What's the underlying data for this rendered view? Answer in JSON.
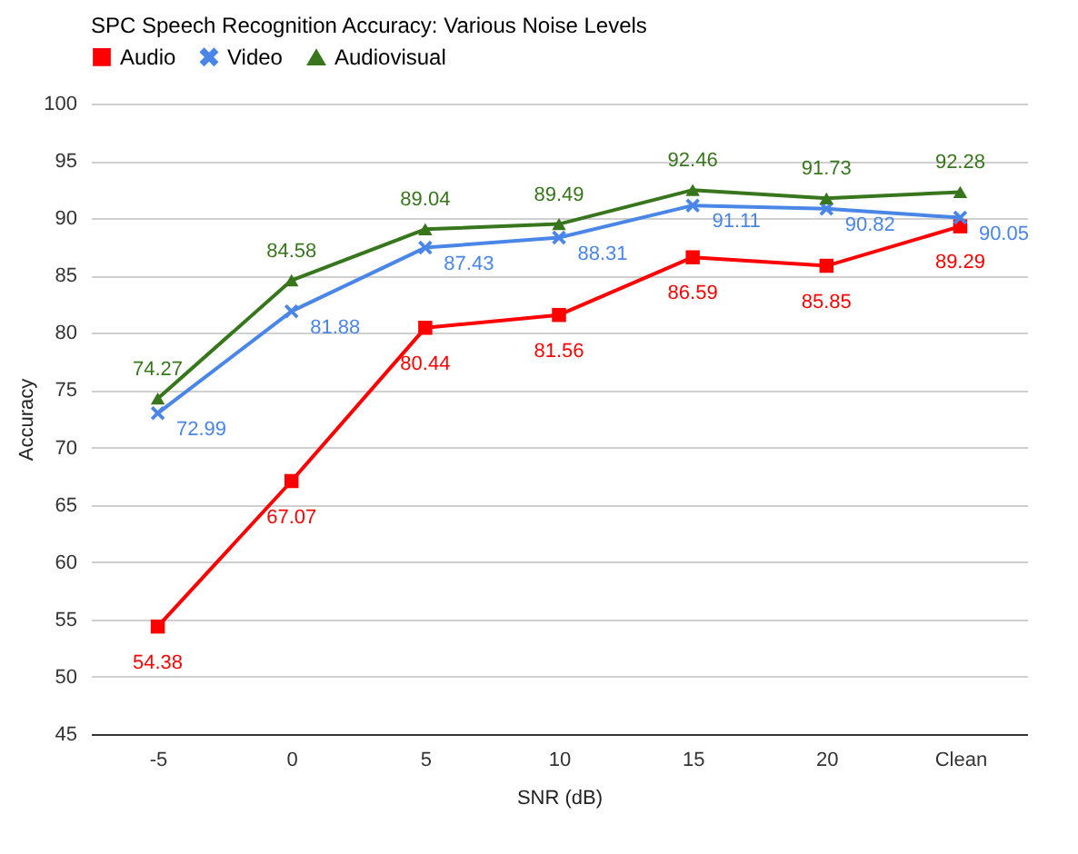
{
  "chart_data": {
    "type": "line",
    "title": "SPC Speech Recognition Accuracy: Various Noise Levels",
    "xlabel": "SNR (dB)",
    "ylabel": "Accuracy",
    "categories": [
      "-5",
      "0",
      "5",
      "10",
      "15",
      "20",
      "Clean"
    ],
    "series": [
      {
        "name": "Audio",
        "color": "#ff0000",
        "marker": "square",
        "values": [
          54.38,
          67.07,
          80.44,
          81.56,
          86.59,
          85.85,
          89.29
        ]
      },
      {
        "name": "Video",
        "color": "#4a86e8",
        "marker": "cross",
        "values": [
          72.99,
          81.88,
          87.43,
          88.31,
          91.11,
          90.82,
          90.05
        ]
      },
      {
        "name": "Audiovisual",
        "color": "#38761d",
        "marker": "triangle",
        "values": [
          74.27,
          84.58,
          89.04,
          89.49,
          92.46,
          91.73,
          92.28
        ]
      }
    ],
    "ylim": [
      45,
      100
    ],
    "yticks": [
      45,
      50,
      55,
      60,
      65,
      70,
      75,
      80,
      85,
      90,
      95,
      100
    ],
    "grid": "y",
    "legend": "top",
    "data_labels": true
  }
}
